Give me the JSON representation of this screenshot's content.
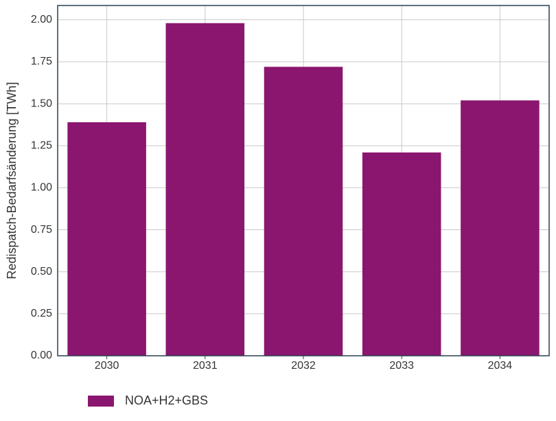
{
  "chart_data": {
    "type": "bar",
    "y_label": "Redispatch-Bedarfsänderung [TWh]",
    "categories": [
      "2030",
      "2031",
      "2032",
      "2033",
      "2034"
    ],
    "series": [
      {
        "name": "NOA+H2+GBS",
        "color": "#8b166f",
        "values": [
          1.39,
          1.98,
          1.72,
          1.21,
          1.52
        ]
      }
    ],
    "ylim": [
      0,
      2.085
    ],
    "yticks": [
      {
        "value": 0,
        "label": "0.00"
      },
      {
        "value": 0.25,
        "label": "0.25"
      },
      {
        "value": 0.5,
        "label": "0.50"
      },
      {
        "value": 0.75,
        "label": "0.75"
      },
      {
        "value": 1,
        "label": "1.00"
      },
      {
        "value": 1.25,
        "label": "1.25"
      },
      {
        "value": 1.5,
        "label": "1.50"
      },
      {
        "value": 1.75,
        "label": "1.75"
      },
      {
        "value": 2,
        "label": "2.00"
      }
    ],
    "grid": true
  }
}
